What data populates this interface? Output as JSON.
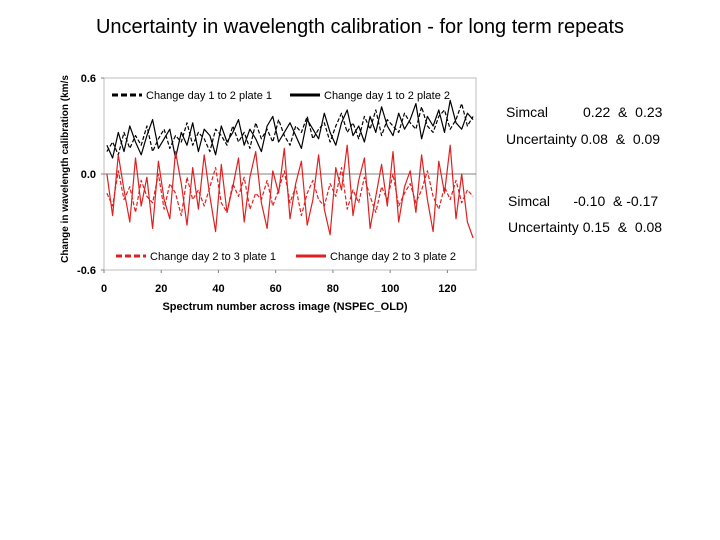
{
  "slide_title": "Uncertainty in wavelength calibration - for long term repeats",
  "chart_data": {
    "type": "line",
    "title": "",
    "xlabel": "Spectrum number across image (NSPEC_OLD)",
    "ylabel": "Change in wavelength calibration (km/s",
    "xlim": [
      0,
      130
    ],
    "ylim": [
      -0.6,
      0.6
    ],
    "x_ticks": [
      "0",
      "20",
      "40",
      "60",
      "80",
      "100",
      "120"
    ],
    "y_ticks": [
      "0.6",
      "0.0",
      "-0.6"
    ],
    "zero_line": true,
    "x": [
      1,
      3,
      5,
      7,
      9,
      11,
      13,
      15,
      17,
      19,
      21,
      23,
      25,
      27,
      29,
      31,
      33,
      35,
      37,
      39,
      41,
      43,
      45,
      47,
      49,
      51,
      53,
      55,
      57,
      59,
      61,
      63,
      65,
      67,
      69,
      71,
      73,
      75,
      77,
      79,
      81,
      83,
      85,
      87,
      89,
      91,
      93,
      95,
      97,
      99,
      101,
      103,
      105,
      107,
      109,
      111,
      113,
      115,
      117,
      119,
      121,
      123,
      125,
      127,
      129
    ],
    "series": [
      {
        "name": "Change day 1 to 2 plate 1",
        "color": "#000000",
        "dash": "dashed",
        "values": [
          0.14,
          0.2,
          0.12,
          0.26,
          0.16,
          0.24,
          0.18,
          0.3,
          0.14,
          0.22,
          0.28,
          0.16,
          0.24,
          0.2,
          0.32,
          0.18,
          0.26,
          0.22,
          0.14,
          0.28,
          0.24,
          0.18,
          0.3,
          0.2,
          0.26,
          0.16,
          0.32,
          0.22,
          0.28,
          0.2,
          0.34,
          0.24,
          0.18,
          0.3,
          0.26,
          0.36,
          0.22,
          0.28,
          0.32,
          0.2,
          0.3,
          0.38,
          0.26,
          0.32,
          0.22,
          0.36,
          0.28,
          0.4,
          0.24,
          0.34,
          0.3,
          0.26,
          0.38,
          0.32,
          0.28,
          0.42,
          0.3,
          0.26,
          0.36,
          0.4,
          0.28,
          0.34,
          0.44,
          0.3,
          0.36
        ]
      },
      {
        "name": "Change day 1 to 2 plate 2",
        "color": "#000000",
        "dash": "solid",
        "values": [
          0.18,
          0.1,
          0.26,
          0.14,
          0.3,
          0.2,
          0.12,
          0.24,
          0.34,
          0.16,
          0.22,
          0.28,
          0.1,
          0.26,
          0.18,
          0.32,
          0.14,
          0.28,
          0.24,
          0.12,
          0.3,
          0.2,
          0.26,
          0.34,
          0.18,
          0.28,
          0.22,
          0.14,
          0.3,
          0.36,
          0.2,
          0.26,
          0.32,
          0.24,
          0.16,
          0.34,
          0.28,
          0.22,
          0.38,
          0.26,
          0.18,
          0.32,
          0.4,
          0.24,
          0.3,
          0.2,
          0.36,
          0.26,
          0.42,
          0.3,
          0.24,
          0.38,
          0.28,
          0.34,
          0.44,
          0.22,
          0.36,
          0.3,
          0.4,
          0.26,
          0.46,
          0.32,
          0.28,
          0.38,
          0.34
        ]
      },
      {
        "name": "Change day 2 to 3 plate 1",
        "color": "#e02020",
        "dash": "dashed",
        "values": [
          -0.12,
          -0.2,
          0.02,
          -0.16,
          -0.08,
          -0.24,
          -0.04,
          -0.14,
          -0.18,
          0.0,
          -0.22,
          -0.06,
          -0.12,
          -0.26,
          -0.02,
          -0.16,
          -0.1,
          -0.2,
          -0.08,
          0.04,
          -0.18,
          -0.24,
          -0.06,
          -0.14,
          -0.02,
          -0.22,
          -0.12,
          -0.16,
          -0.04,
          -0.2,
          -0.1,
          0.02,
          -0.18,
          -0.08,
          -0.26,
          -0.12,
          -0.04,
          -0.16,
          -0.2,
          -0.06,
          -0.14,
          0.04,
          -0.22,
          -0.1,
          -0.18,
          -0.02,
          -0.14,
          -0.24,
          -0.08,
          -0.16,
          0.0,
          -0.2,
          -0.12,
          -0.06,
          -0.18,
          -0.1,
          0.02,
          -0.14,
          -0.22,
          -0.08,
          -0.16,
          -0.04,
          -0.18,
          -0.1,
          -0.14
        ]
      },
      {
        "name": "Change day 2 to 3 plate 2",
        "color": "#e02020",
        "dash": "solid",
        "values": [
          0.0,
          -0.26,
          0.12,
          -0.1,
          -0.3,
          0.1,
          -0.2,
          -0.02,
          -0.34,
          0.08,
          -0.16,
          -0.28,
          0.14,
          -0.06,
          -0.32,
          0.04,
          -0.22,
          0.12,
          -0.14,
          -0.36,
          0.06,
          -0.24,
          -0.08,
          0.1,
          -0.3,
          -0.02,
          0.14,
          -0.18,
          -0.34,
          0.02,
          -0.12,
          0.16,
          -0.28,
          -0.06,
          0.08,
          -0.32,
          -0.16,
          0.12,
          -0.22,
          -0.38,
          0.04,
          -0.1,
          0.18,
          -0.26,
          -0.04,
          0.1,
          -0.34,
          -0.14,
          0.06,
          -0.2,
          0.14,
          -0.3,
          -0.08,
          0.02,
          -0.24,
          0.12,
          -0.16,
          -0.36,
          0.08,
          -0.12,
          0.18,
          -0.28,
          0.0,
          -0.3,
          -0.4
        ]
      }
    ],
    "legend_positions": [
      "top-left",
      "top-right",
      "bottom-left",
      "bottom-right"
    ]
  },
  "annotations": [
    {
      "line1": "Simcal         0.22  &  0.23",
      "line2": "Uncertainty 0.08  &  0.09"
    },
    {
      "line1": "Simcal      -0.10  & -0.17",
      "line2": "Uncertainty 0.15  &  0.08"
    }
  ]
}
